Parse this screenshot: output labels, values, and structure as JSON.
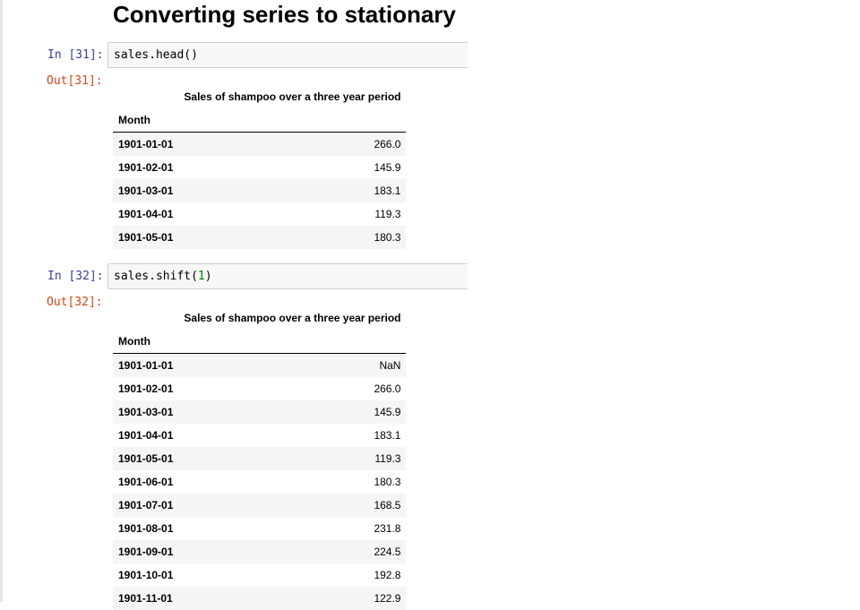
{
  "notebook": {
    "heading": "Converting series to stationary",
    "cells": [
      {
        "in_prompt": "In [31]:",
        "code": "sales.head()",
        "code_parts": [
          "sales.head()",
          "",
          ""
        ],
        "out_prompt": "Out[31]:",
        "table": {
          "column": "Sales of shampoo over a three year period",
          "index_name": "Month",
          "rows": [
            {
              "month": "1901-01-01",
              "value": "266.0"
            },
            {
              "month": "1901-02-01",
              "value": "145.9"
            },
            {
              "month": "1901-03-01",
              "value": "183.1"
            },
            {
              "month": "1901-04-01",
              "value": "119.3"
            },
            {
              "month": "1901-05-01",
              "value": "180.3"
            }
          ]
        }
      },
      {
        "in_prompt": "In [32]:",
        "code": "sales.shift(1)",
        "code_parts": [
          "sales.shift(",
          "1",
          ")"
        ],
        "out_prompt": "Out[32]:",
        "table": {
          "column": "Sales of shampoo over a three year period",
          "index_name": "Month",
          "rows": [
            {
              "month": "1901-01-01",
              "value": "NaN"
            },
            {
              "month": "1901-02-01",
              "value": "266.0"
            },
            {
              "month": "1901-03-01",
              "value": "145.9"
            },
            {
              "month": "1901-04-01",
              "value": "183.1"
            },
            {
              "month": "1901-05-01",
              "value": "119.3"
            },
            {
              "month": "1901-06-01",
              "value": "180.3"
            },
            {
              "month": "1901-07-01",
              "value": "168.5"
            },
            {
              "month": "1901-08-01",
              "value": "231.8"
            },
            {
              "month": "1901-09-01",
              "value": "224.5"
            },
            {
              "month": "1901-10-01",
              "value": "192.8"
            },
            {
              "month": "1901-11-01",
              "value": "122.9"
            }
          ]
        }
      }
    ]
  }
}
